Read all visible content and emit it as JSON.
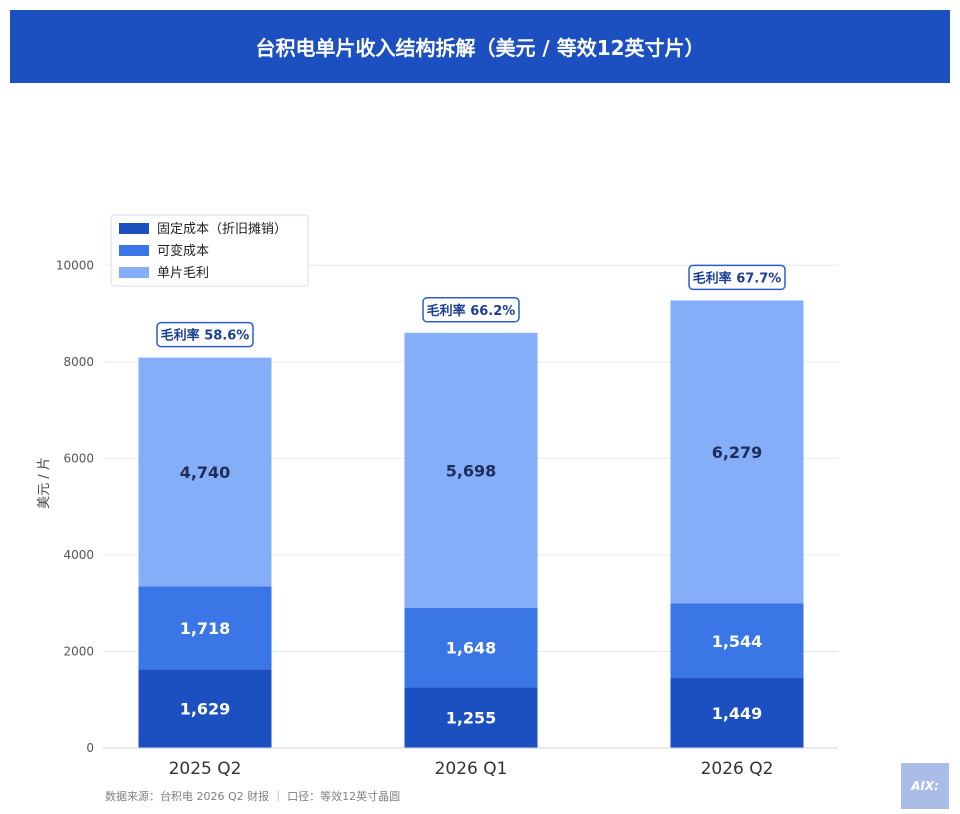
{
  "title": "台积电单片收入结构拆解（美元 / 等效12英寸片）",
  "source_note": "数据来源：台积电 2026 Q2 财报 ｜ 口径：等效12英寸晶圆",
  "logo_text": "AIX:",
  "colors": {
    "header": "#1c4fbf",
    "fixed": "#1c4fbf",
    "variable": "#3a76e6",
    "margin": "#84aef8",
    "badge_border": "#2b5cc8",
    "badge_text": "#1b3f93",
    "label_dark": "#1f2d5a"
  },
  "chart_data": {
    "type": "bar",
    "stacked": true,
    "categories": [
      "2025 Q2",
      "2026 Q1",
      "2026 Q2"
    ],
    "series": [
      {
        "name": "固定成本（折旧摊销）",
        "values": [
          1629,
          1255,
          1449
        ]
      },
      {
        "name": "可变成本",
        "values": [
          1718,
          1648,
          1544
        ]
      },
      {
        "name": "单片毛利",
        "values": [
          4740,
          5698,
          6279
        ]
      }
    ],
    "value_labels": [
      [
        "1,629",
        "1,255",
        "1,449"
      ],
      [
        "1,718",
        "1,648",
        "1,544"
      ],
      [
        "4,740",
        "5,698",
        "6,279"
      ]
    ],
    "annotations": [
      "毛利率 58.6%",
      "毛利率 66.2%",
      "毛利率 67.7%"
    ],
    "ylabel": "美元 / 片",
    "ylim": [
      0,
      11000
    ],
    "yticks": [
      0,
      2000,
      4000,
      6000,
      8000,
      10000
    ],
    "grid": true,
    "legend_position": "top-left"
  }
}
